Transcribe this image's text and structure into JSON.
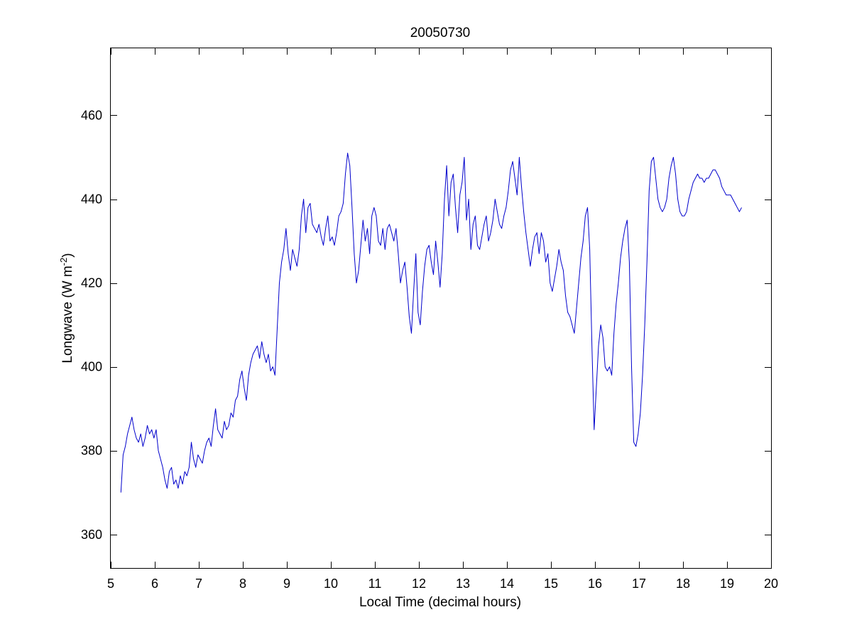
{
  "chart_data": {
    "type": "line",
    "title": "20050730",
    "xlabel": "Local Time (decimal hours)",
    "ylabel": {
      "main": "Longwave (W m",
      "sup": "-2",
      "close": ")"
    },
    "xlim": [
      5,
      20
    ],
    "ylim": [
      352,
      476
    ],
    "xticks": [
      5,
      6,
      7,
      8,
      9,
      10,
      11,
      12,
      13,
      14,
      15,
      16,
      17,
      18,
      19,
      20
    ],
    "yticks": [
      360,
      380,
      400,
      420,
      440,
      460
    ],
    "grid": false,
    "line_color": "#0000cc",
    "series": [
      {
        "x": [
          5.23,
          5.28,
          5.33,
          5.38,
          5.43,
          5.48,
          5.53,
          5.58,
          5.63,
          5.68,
          5.73,
          5.78,
          5.83,
          5.88,
          5.93,
          5.98,
          6.03,
          6.08,
          6.13,
          6.18,
          6.23,
          6.28,
          6.33,
          6.38,
          6.43,
          6.48,
          6.53,
          6.58,
          6.63,
          6.68,
          6.73,
          6.78,
          6.83,
          6.88,
          6.93,
          6.98,
          7.03,
          7.08,
          7.13,
          7.18,
          7.23,
          7.28,
          7.33,
          7.38,
          7.43,
          7.48,
          7.53,
          7.58,
          7.63,
          7.68,
          7.73,
          7.78,
          7.83,
          7.88,
          7.93,
          7.98,
          8.03,
          8.08,
          8.13,
          8.18,
          8.23,
          8.28,
          8.33,
          8.38,
          8.43,
          8.48,
          8.53,
          8.58,
          8.63,
          8.68,
          8.73,
          8.78,
          8.83,
          8.88,
          8.93,
          8.98,
          9.03,
          9.08,
          9.13,
          9.18,
          9.23,
          9.28,
          9.33,
          9.38,
          9.43,
          9.48,
          9.53,
          9.58,
          9.63,
          9.68,
          9.73,
          9.78,
          9.83,
          9.88,
          9.93,
          9.98,
          10.03,
          10.08,
          10.13,
          10.18,
          10.23,
          10.28,
          10.33,
          10.38,
          10.43,
          10.48,
          10.53,
          10.58,
          10.63,
          10.68,
          10.73,
          10.78,
          10.83,
          10.88,
          10.93,
          10.98,
          11.03,
          11.08,
          11.13,
          11.18,
          11.23,
          11.28,
          11.33,
          11.38,
          11.43,
          11.48,
          11.53,
          11.58,
          11.63,
          11.68,
          11.73,
          11.78,
          11.83,
          11.88,
          11.93,
          11.98,
          12.03,
          12.08,
          12.13,
          12.18,
          12.23,
          12.28,
          12.33,
          12.38,
          12.43,
          12.48,
          12.53,
          12.58,
          12.63,
          12.68,
          12.73,
          12.78,
          12.83,
          12.88,
          12.93,
          12.98,
          13.03,
          13.08,
          13.13,
          13.18,
          13.23,
          13.28,
          13.33,
          13.38,
          13.43,
          13.48,
          13.53,
          13.58,
          13.63,
          13.68,
          13.73,
          13.78,
          13.83,
          13.88,
          13.93,
          13.98,
          14.03,
          14.08,
          14.13,
          14.18,
          14.23,
          14.28,
          14.33,
          14.38,
          14.43,
          14.48,
          14.53,
          14.58,
          14.63,
          14.68,
          14.73,
          14.78,
          14.83,
          14.88,
          14.93,
          14.98,
          15.03,
          15.08,
          15.13,
          15.18,
          15.23,
          15.28,
          15.33,
          15.38,
          15.43,
          15.48,
          15.53,
          15.58,
          15.63,
          15.68,
          15.73,
          15.78,
          15.83,
          15.88,
          15.93,
          15.98,
          16.03,
          16.08,
          16.13,
          16.18,
          16.23,
          16.28,
          16.33,
          16.38,
          16.43,
          16.48,
          16.53,
          16.58,
          16.63,
          16.68,
          16.73,
          16.78,
          16.83,
          16.88,
          16.93,
          16.98,
          17.03,
          17.08,
          17.13,
          17.18,
          17.23,
          17.28,
          17.33,
          17.38,
          17.43,
          17.48,
          17.53,
          17.58,
          17.63,
          17.68,
          17.73,
          17.78,
          17.83,
          17.88,
          17.93,
          17.98,
          18.03,
          18.08,
          18.13,
          18.18,
          18.23,
          18.28,
          18.33,
          18.38,
          18.43,
          18.48,
          18.53,
          18.58,
          18.63,
          18.68,
          18.73,
          18.78,
          18.83,
          18.88,
          18.93,
          18.98,
          19.03,
          19.08,
          19.13,
          19.18,
          19.23,
          19.28,
          19.33
        ],
        "y": [
          370,
          379,
          381,
          384,
          386,
          388,
          385,
          383,
          382,
          384,
          381,
          383,
          386,
          384,
          385,
          383,
          385,
          380,
          378,
          376,
          373,
          371,
          375,
          376,
          372,
          373,
          371,
          374,
          372,
          375,
          374,
          376,
          382,
          378,
          376,
          379,
          378,
          377,
          380,
          382,
          383,
          381,
          386,
          390,
          385,
          384,
          383,
          387,
          385,
          386,
          389,
          388,
          392,
          393,
          397,
          399,
          395,
          392,
          398,
          401,
          403,
          404,
          405,
          402,
          406,
          403,
          401,
          403,
          399,
          400,
          398,
          409,
          420,
          425,
          428,
          433,
          427,
          423,
          428,
          426,
          424,
          428,
          436,
          440,
          432,
          438,
          439,
          434,
          433,
          432,
          434,
          431,
          429,
          433,
          436,
          430,
          431,
          429,
          432,
          436,
          437,
          439,
          446,
          451,
          448,
          438,
          427,
          420,
          423,
          429,
          435,
          430,
          433,
          427,
          436,
          438,
          436,
          430,
          429,
          433,
          428,
          433,
          434,
          432,
          430,
          433,
          427,
          420,
          423,
          425,
          419,
          412,
          408,
          418,
          427,
          413,
          410,
          418,
          424,
          428,
          429,
          425,
          422,
          430,
          425,
          419,
          427,
          440,
          448,
          436,
          444,
          446,
          438,
          432,
          441,
          444,
          450,
          435,
          440,
          428,
          434,
          436,
          429,
          428,
          431,
          434,
          436,
          430,
          432,
          435,
          440,
          437,
          434,
          433,
          436,
          438,
          442,
          447,
          449,
          445,
          441,
          450,
          443,
          437,
          432,
          428,
          424,
          428,
          431,
          432,
          427,
          432,
          430,
          425,
          427,
          420,
          418,
          421,
          424,
          428,
          425,
          423,
          417,
          413,
          412,
          410,
          408,
          414,
          420,
          426,
          430,
          436,
          438,
          428,
          405,
          385,
          395,
          405,
          410,
          407,
          400,
          399,
          400,
          398,
          408,
          415,
          420,
          426,
          430,
          433,
          435,
          425,
          400,
          382,
          381,
          384,
          389,
          398,
          410,
          425,
          442,
          449,
          450,
          445,
          440,
          438,
          437,
          438,
          440,
          445,
          448,
          450,
          446,
          440,
          437,
          436,
          436,
          437,
          440,
          442,
          444,
          445,
          446,
          445,
          445,
          444,
          445,
          445,
          446,
          447,
          447,
          446,
          445,
          443,
          442,
          441,
          441,
          441,
          440,
          439,
          438,
          437,
          438
        ]
      }
    ]
  }
}
